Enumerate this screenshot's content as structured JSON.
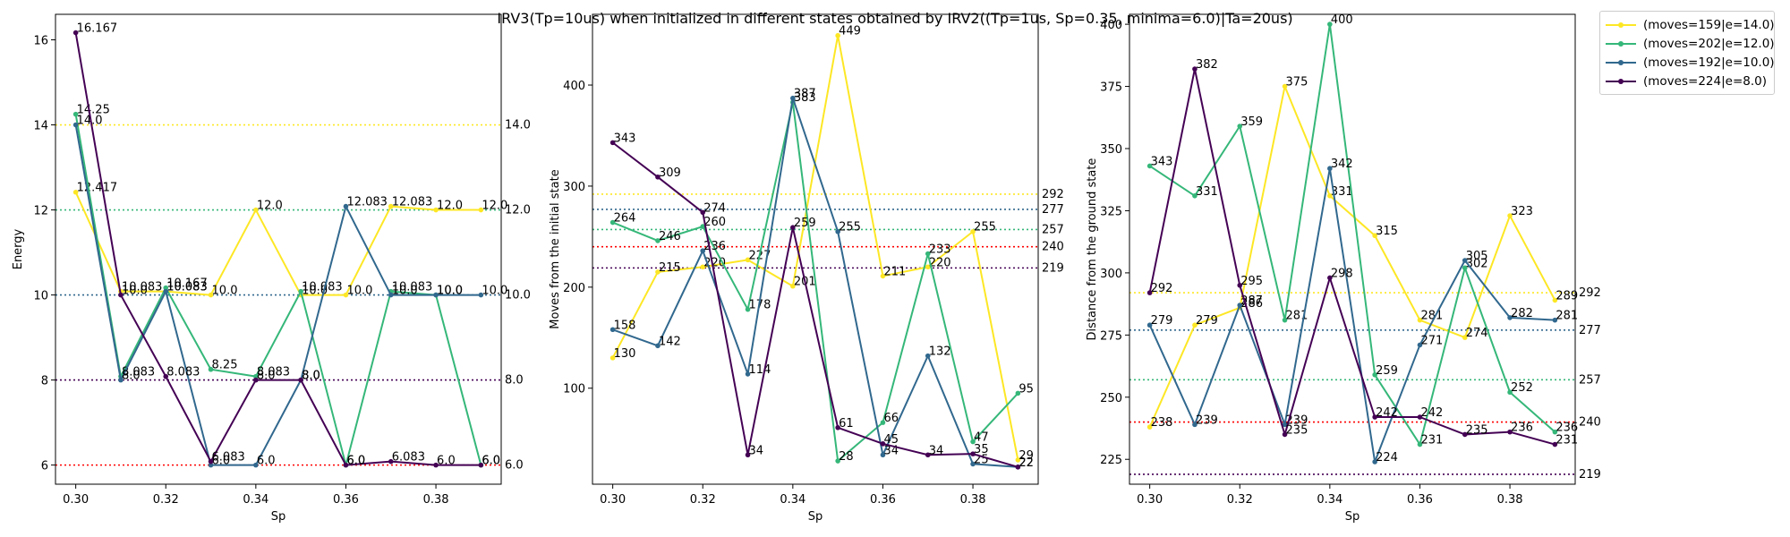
{
  "chart_data": {
    "type": "line",
    "title": "IRV3(Tp=10us) when initialized in different states obtained by IRV2((Tp=1us, Sp=0.35, minima=6.0)|Ta=20us)",
    "legend_placement": "outside-top-right",
    "grid": false,
    "series": [
      {
        "name": "(moves=159|e=14.0)",
        "color": "#fde725"
      },
      {
        "name": "(moves=202|e=12.0)",
        "color": "#35b779"
      },
      {
        "name": "(moves=192|e=10.0)",
        "color": "#31688e"
      },
      {
        "name": "(moves=224|e=8.0)",
        "color": "#440154"
      }
    ],
    "x": [
      0.3,
      0.31,
      0.32,
      0.33,
      0.34,
      0.35,
      0.36,
      0.37,
      0.38,
      0.39
    ],
    "panels": [
      {
        "xlabel": "Sp",
        "ylabel": "Energy",
        "ylim": [
          5.55,
          16.6
        ],
        "yticks": [
          "6",
          "8",
          "10",
          "12",
          "14",
          "16"
        ],
        "ytick_values": [
          6,
          8,
          10,
          12,
          14,
          16
        ],
        "xticks": [
          "0.30",
          "0.32",
          "0.34",
          "0.36",
          "0.38"
        ],
        "xtick_values": [
          0.3,
          0.32,
          0.34,
          0.36,
          0.38
        ],
        "values": [
          [
            12.417,
            10.083,
            10.083,
            10.0,
            12.0,
            10.0,
            10.0,
            12.083,
            12.0,
            12.0
          ],
          [
            14.25,
            8.083,
            10.167,
            8.25,
            8.083,
            10.083,
            6.0,
            10.083,
            10.0,
            6.0
          ],
          [
            14.0,
            8.0,
            10.083,
            6.0,
            6.0,
            8.0,
            12.083,
            10.0,
            10.0,
            10.0
          ],
          [
            16.167,
            10.0,
            8.083,
            6.083,
            8.0,
            8.0,
            6.0,
            6.083,
            6.0,
            6.0
          ]
        ],
        "labels": [
          [
            "12.417",
            "10.083",
            "10.083",
            "10.0",
            "12.0",
            "10.0",
            "10.0",
            "12.083",
            "12.0",
            "12.0"
          ],
          [
            "14.25",
            "8.083",
            "10.167",
            "8.25",
            "8.083",
            "10.083",
            "6.0",
            "10.083",
            "10.0",
            "6.0"
          ],
          [
            "14.0",
            "8.0",
            "10.083",
            "6.0",
            "6.0",
            "8.0",
            "12.083",
            "10.0",
            "10.0",
            "10.0"
          ],
          [
            "16.167",
            "10.0",
            "8.083",
            "6.083",
            "8.0",
            "8.0",
            "6.0",
            "6.083",
            "6.0",
            "6.0"
          ]
        ],
        "hlines": [
          {
            "value": 14.0,
            "label": "14.0",
            "color": "#fde725"
          },
          {
            "value": 12.0,
            "label": "12.0",
            "color": "#35b779"
          },
          {
            "value": 10.0,
            "label": "10.0",
            "color": "#31688e"
          },
          {
            "value": 8.0,
            "label": "8.0",
            "color": "#440154"
          },
          {
            "value": 6.0,
            "label": "6.0",
            "color": "#ff0000"
          }
        ]
      },
      {
        "xlabel": "Sp",
        "ylabel": "Moves from the initial state",
        "ylim": [
          5,
          470
        ],
        "yticks": [
          "100",
          "200",
          "300",
          "400"
        ],
        "ytick_values": [
          100,
          200,
          300,
          400
        ],
        "xticks": [
          "0.30",
          "0.32",
          "0.34",
          "0.36",
          "0.38"
        ],
        "xtick_values": [
          0.3,
          0.32,
          0.34,
          0.36,
          0.38
        ],
        "values": [
          [
            130,
            215,
            220,
            227,
            201,
            449,
            211,
            220,
            255,
            29
          ],
          [
            264,
            246,
            260,
            178,
            383,
            28,
            66,
            233,
            47,
            95
          ],
          [
            158,
            142,
            236,
            114,
            387,
            255,
            34,
            132,
            25,
            22
          ],
          [
            343,
            309,
            274,
            34,
            259,
            61,
            45,
            34,
            35,
            22
          ]
        ],
        "labels": [
          [
            "130",
            "215",
            "220",
            "227",
            "201",
            "449",
            "211",
            "220",
            "255",
            "29"
          ],
          [
            "264",
            "246",
            "260",
            "178",
            "383",
            "28",
            "66",
            "233",
            "47",
            "95"
          ],
          [
            "158",
            "142",
            "236",
            "114",
            "387",
            "255",
            "34",
            "132",
            "25",
            "22"
          ],
          [
            "343",
            "309",
            "274",
            "34",
            "259",
            "61",
            "45",
            "34",
            "35",
            "22"
          ]
        ],
        "hlines": [
          {
            "value": 292,
            "label": "292",
            "color": "#fde725"
          },
          {
            "value": 277,
            "label": "277",
            "color": "#31688e"
          },
          {
            "value": 257,
            "label": "257",
            "color": "#35b779"
          },
          {
            "value": 240,
            "label": "240",
            "color": "#ff0000"
          },
          {
            "value": 219,
            "label": "219",
            "color": "#440154"
          }
        ]
      },
      {
        "xlabel": "Sp",
        "ylabel": "Distance from the ground state",
        "ylim": [
          215,
          404
        ],
        "yticks": [
          "225",
          "250",
          "275",
          "300",
          "325",
          "350",
          "375",
          "400"
        ],
        "ytick_values": [
          225,
          250,
          275,
          300,
          325,
          350,
          375,
          400
        ],
        "xticks": [
          "0.30",
          "0.32",
          "0.34",
          "0.36",
          "0.38"
        ],
        "xtick_values": [
          0.3,
          0.32,
          0.34,
          0.36,
          0.38
        ],
        "values": [
          [
            238,
            279,
            286,
            375,
            331,
            315,
            281,
            274,
            323,
            289
          ],
          [
            343,
            331,
            359,
            281,
            400,
            259,
            231,
            302,
            252,
            236
          ],
          [
            279,
            239,
            287,
            239,
            342,
            224,
            271,
            305,
            282,
            281
          ],
          [
            292,
            382,
            295,
            235,
            298,
            242,
            242,
            235,
            236,
            231
          ]
        ],
        "labels": [
          [
            "238",
            "279",
            "286",
            "375",
            "331",
            "315",
            "281",
            "274",
            "323",
            "289"
          ],
          [
            "343",
            "331",
            "359",
            "281",
            "400",
            "259",
            "231",
            "302",
            "252",
            "236"
          ],
          [
            "279",
            "239",
            "287",
            "239",
            "342",
            "224",
            "271",
            "305",
            "282",
            "281"
          ],
          [
            "292",
            "382",
            "295",
            "235",
            "298",
            "242",
            "242",
            "235",
            "236",
            "231"
          ]
        ],
        "hlines": [
          {
            "value": 292,
            "label": "292",
            "color": "#fde725"
          },
          {
            "value": 277,
            "label": "277",
            "color": "#31688e"
          },
          {
            "value": 257,
            "label": "257",
            "color": "#35b779"
          },
          {
            "value": 240,
            "label": "240",
            "color": "#ff0000"
          },
          {
            "value": 219,
            "label": "219",
            "color": "#440154"
          }
        ]
      }
    ]
  }
}
